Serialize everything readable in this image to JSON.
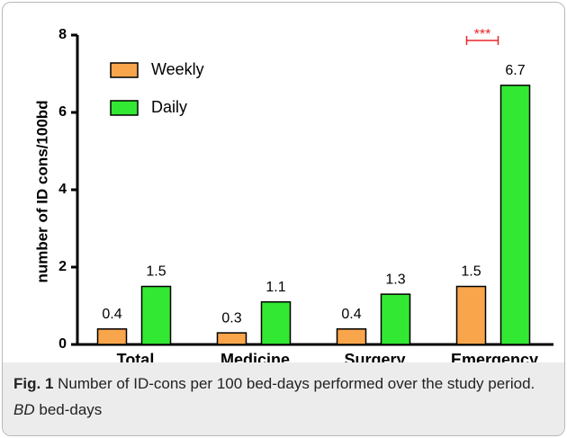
{
  "chart_data": {
    "type": "bar",
    "y_label": "number of ID cons/100bd",
    "categories": [
      "Total",
      "Medicine",
      "Surgery",
      "Emergency"
    ],
    "series": [
      {
        "name": "Weekly",
        "color": "#f9a54b",
        "values": [
          0.4,
          0.3,
          0.4,
          1.5
        ]
      },
      {
        "name": "Daily",
        "color": "#33e833",
        "values": [
          1.5,
          1.1,
          1.3,
          6.7
        ]
      }
    ],
    "ylim": [
      0,
      8
    ],
    "yticks": [
      0,
      2,
      4,
      6,
      8
    ],
    "legend": "upper left",
    "annotations": [
      {
        "text": "***",
        "color": "#e8262b"
      }
    ]
  },
  "caption": {
    "label": "Fig. 1",
    "text": "Number of ID-cons per 100 bed-days performed over the study period.",
    "abbr": "BD",
    "abbr_text": "bed-days"
  }
}
